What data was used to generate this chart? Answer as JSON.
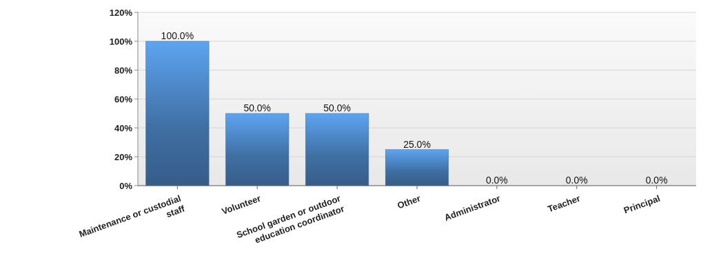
{
  "chart_data": {
    "type": "bar",
    "categories": [
      "Maintenance or custodial staff",
      "Volunteer",
      "School garden or outdoor education coordinator",
      "Other",
      "Administrator",
      "Teacher",
      "Principal"
    ],
    "values": [
      100,
      50,
      50,
      25,
      0,
      0,
      0
    ],
    "value_labels": [
      "100.0%",
      "50.0%",
      "50.0%",
      "25.0%",
      "0.0%",
      "0.0%",
      "0.0%"
    ],
    "color": "#3f6fa3",
    "ylim": [
      0,
      120
    ],
    "yticks": [
      {
        "value": 0,
        "label": "0%"
      },
      {
        "value": 20,
        "label": "20%"
      },
      {
        "value": 40,
        "label": "40%"
      },
      {
        "value": 60,
        "label": "60%"
      },
      {
        "value": 80,
        "label": "80%"
      },
      {
        "value": 100,
        "label": "100%"
      },
      {
        "value": 120,
        "label": "120%"
      }
    ],
    "grid": "y"
  }
}
